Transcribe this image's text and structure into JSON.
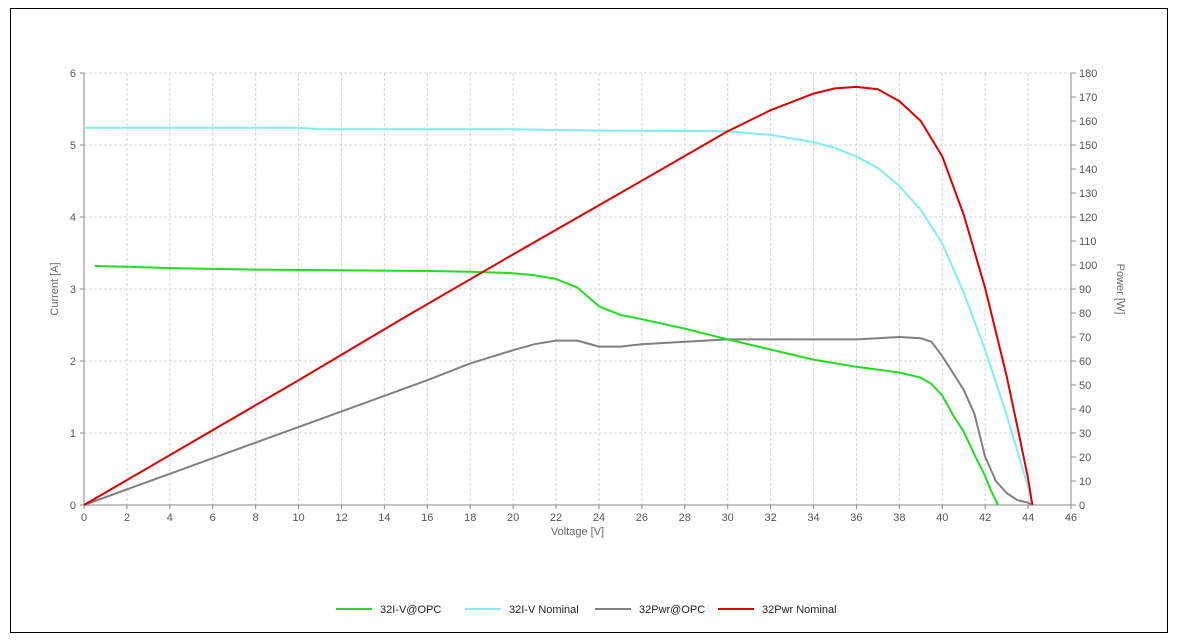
{
  "chart_data": {
    "type": "line",
    "title": "",
    "xlabel": "Voltage [V]",
    "ylabel": "Current [A]",
    "y2label": "Power [W]",
    "xlim": [
      0,
      46
    ],
    "ylim": [
      0,
      6
    ],
    "y2lim": [
      0,
      180
    ],
    "x_ticks": [
      0,
      2,
      4,
      6,
      8,
      10,
      12,
      14,
      16,
      18,
      20,
      22,
      24,
      26,
      28,
      30,
      32,
      34,
      36,
      38,
      40,
      42,
      44,
      46
    ],
    "y_ticks": [
      0,
      1,
      2,
      3,
      4,
      5,
      6
    ],
    "y2_ticks": [
      0,
      10,
      20,
      30,
      40,
      50,
      60,
      70,
      80,
      90,
      100,
      110,
      120,
      130,
      140,
      150,
      160,
      170,
      180
    ],
    "grid": true,
    "legend_position": "bottom",
    "series": [
      {
        "name": "32I-V@OPC",
        "axis": "left",
        "color": "#22dd22",
        "x": [
          0.5,
          2,
          4,
          8,
          12,
          16,
          18,
          20,
          21,
          22,
          23,
          24,
          25,
          26,
          28,
          30,
          32,
          34,
          36,
          38,
          39,
          39.5,
          40,
          40.5,
          41,
          41.5,
          42,
          42.3,
          42.6
        ],
        "y": [
          3.32,
          3.31,
          3.29,
          3.27,
          3.26,
          3.25,
          3.24,
          3.22,
          3.19,
          3.14,
          3.02,
          2.76,
          2.64,
          2.58,
          2.45,
          2.3,
          2.16,
          2.02,
          1.92,
          1.84,
          1.77,
          1.68,
          1.52,
          1.25,
          1.02,
          0.7,
          0.4,
          0.18,
          0
        ]
      },
      {
        "name": "32I-V Nominal",
        "axis": "left",
        "color": "#7feeee",
        "x": [
          0,
          5,
          10,
          11,
          20,
          24,
          30,
          32,
          34,
          35,
          36,
          37,
          38,
          39,
          40,
          41,
          42,
          43,
          43.5,
          44,
          44.2
        ],
        "y": [
          5.24,
          5.24,
          5.24,
          5.22,
          5.22,
          5.2,
          5.19,
          5.14,
          5.04,
          4.96,
          4.84,
          4.68,
          4.43,
          4.1,
          3.63,
          2.95,
          2.15,
          1.25,
          0.75,
          0.25,
          0
        ]
      },
      {
        "name": "32Pwr@OPC",
        "axis": "right",
        "color": "#808080",
        "x": [
          0,
          4,
          8,
          12,
          16,
          18,
          20,
          21,
          22,
          23,
          24,
          25,
          26,
          28,
          30,
          32,
          34,
          36,
          37,
          38,
          39,
          39.5,
          40,
          40.5,
          41,
          41.5,
          42,
          42.5,
          43,
          43.5,
          44,
          44.2
        ],
        "y": [
          0,
          13,
          26,
          39,
          52,
          59,
          64.5,
          67,
          68.5,
          68.5,
          66,
          66,
          67,
          68,
          69,
          69,
          69,
          69,
          69.5,
          70,
          69.5,
          68,
          62,
          55,
          48,
          38,
          20,
          10,
          5,
          2,
          1,
          0
        ]
      },
      {
        "name": "32Pwr Nominal",
        "axis": "right",
        "color": "#dd0000",
        "x": [
          0,
          5,
          10,
          15,
          20,
          25,
          30,
          32,
          34,
          35,
          36,
          37,
          38,
          39,
          40,
          41,
          42,
          43,
          43.5,
          44,
          44.2
        ],
        "y": [
          0,
          26,
          52,
          78.5,
          104.4,
          130,
          155.7,
          164.5,
          171.4,
          173.6,
          174.2,
          173.2,
          168.3,
          160,
          145.2,
          121,
          90.3,
          53.8,
          32.6,
          11,
          0
        ]
      }
    ]
  }
}
